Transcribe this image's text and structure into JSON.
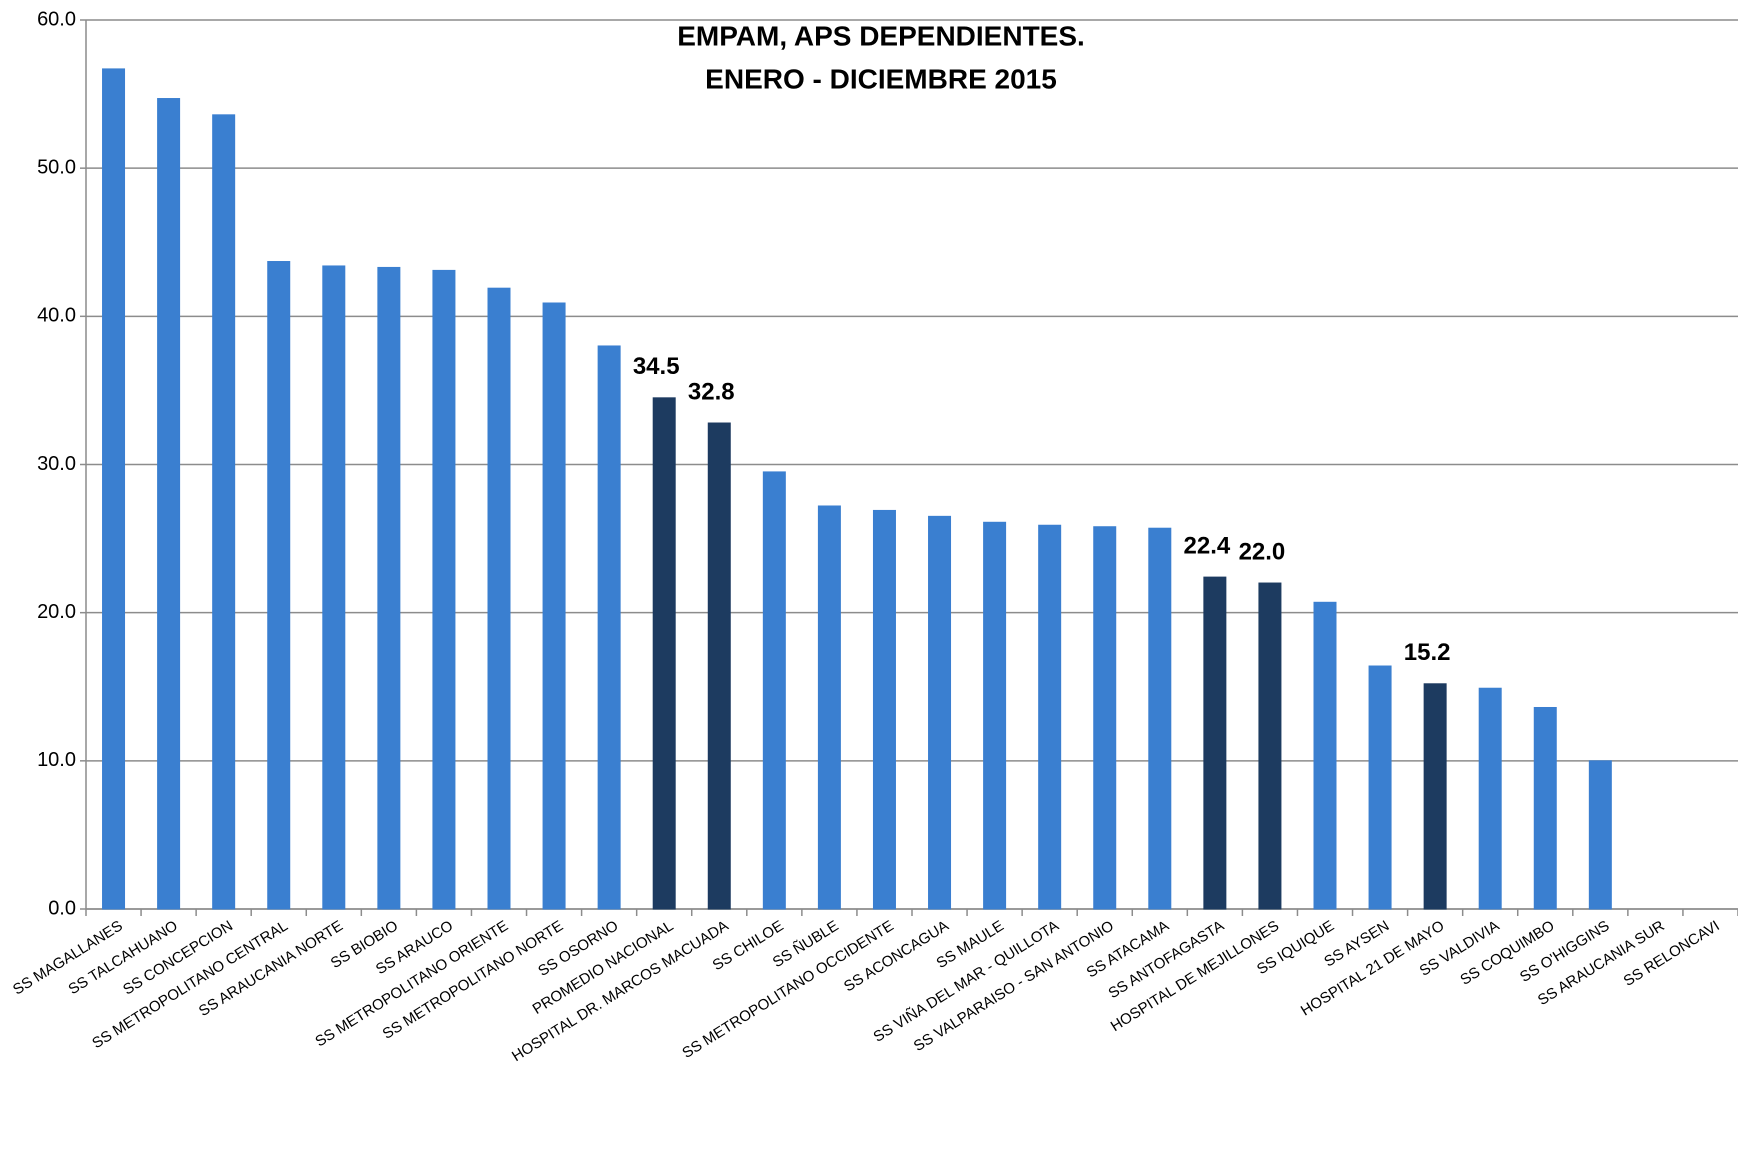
{
  "chart_data": {
    "type": "bar",
    "title": "EMPAM, APS DEPENDIENTES.",
    "subtitle": "ENERO - DICIEMBRE 2015",
    "categories": [
      "SS MAGALLANES",
      "SS TALCAHUANO",
      "SS CONCEPCION",
      "SS METROPOLITANO CENTRAL",
      "SS ARAUCANIA NORTE",
      "SS BIOBIO",
      "SS ARAUCO",
      "SS METROPOLITANO ORIENTE",
      "SS METROPOLITANO NORTE",
      "SS OSORNO",
      "PROMEDIO NACIONAL",
      "HOSPITAL DR. MARCOS MACUADA",
      "SS CHILOE",
      "SS ÑUBLE",
      "SS METROPOLITANO OCCIDENTE",
      "SS ACONCAGUA",
      "SS MAULE",
      "SS VIÑA DEL MAR - QUILLOTA",
      "SS VALPARAISO - SAN ANTONIO",
      "SS ATACAMA",
      "SS ANTOFAGASTA",
      "HOSPITAL DE MEJILLONES",
      "SS IQUIQUE",
      "SS AYSEN",
      "HOSPITAL 21 DE MAYO",
      "SS VALDIVIA",
      "SS COQUIMBO",
      "SS O'HIGGINS",
      "SS ARAUCANIA SUR",
      "SS RELONCAVI"
    ],
    "values": [
      56.7,
      54.7,
      53.6,
      43.7,
      43.4,
      43.3,
      43.1,
      41.9,
      40.9,
      38.0,
      34.5,
      32.8,
      29.5,
      27.2,
      26.9,
      26.5,
      26.1,
      25.9,
      25.8,
      25.7,
      22.4,
      22.0,
      20.7,
      16.4,
      15.2,
      14.9,
      13.6,
      10.0,
      null,
      null
    ],
    "value_labels": [
      null,
      null,
      null,
      null,
      null,
      null,
      null,
      null,
      null,
      null,
      "34.5",
      "32.8",
      null,
      null,
      null,
      null,
      null,
      null,
      null,
      null,
      "22.4",
      "22.0",
      null,
      null,
      "15.2",
      null,
      null,
      null,
      null,
      null
    ],
    "colors": [
      "#3a7fd0",
      "#3a7fd0",
      "#3a7fd0",
      "#3a7fd0",
      "#3a7fd0",
      "#3a7fd0",
      "#3a7fd0",
      "#3a7fd0",
      "#3a7fd0",
      "#3a7fd0",
      "#1d3b60",
      "#1d3b60",
      "#3a7fd0",
      "#3a7fd0",
      "#3a7fd0",
      "#3a7fd0",
      "#3a7fd0",
      "#3a7fd0",
      "#3a7fd0",
      "#3a7fd0",
      "#1d3b60",
      "#1d3b60",
      "#3a7fd0",
      "#3a7fd0",
      "#1d3b60",
      "#3a7fd0",
      "#3a7fd0",
      "#3a7fd0",
      "#3a7fd0",
      "#3a7fd0"
    ],
    "ylim": [
      0,
      60
    ],
    "yticks": [
      {
        "value": 0,
        "label": "0.0"
      },
      {
        "value": 10,
        "label": "10.0"
      },
      {
        "value": 20,
        "label": "20.0"
      },
      {
        "value": 30,
        "label": "30.0"
      },
      {
        "value": 40,
        "label": "40.0"
      },
      {
        "value": 50,
        "label": "50.0"
      },
      {
        "value": 60,
        "label": "60.0"
      }
    ],
    "grid": true
  }
}
